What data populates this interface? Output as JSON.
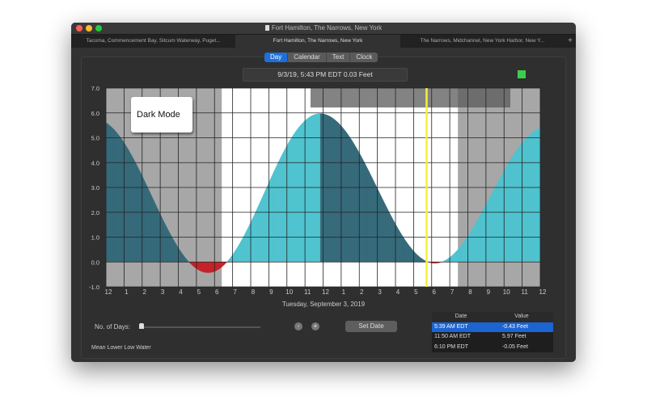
{
  "window": {
    "title": "Fort Hamilton, The Narrows, New York"
  },
  "tabs": [
    {
      "label": "Tacoma, Commencement Bay, Sitcum Waterway, Puget..."
    },
    {
      "label": "Fort Hamilton, The Narrows, New York",
      "active": true
    },
    {
      "label": "The Narrows, Midchannel, New York Harbor, New Y..."
    }
  ],
  "tab_add": "+",
  "view_modes": [
    {
      "label": "Day",
      "selected": true
    },
    {
      "label": "Calendar"
    },
    {
      "label": "Text"
    },
    {
      "label": "Clock"
    }
  ],
  "current_reading": "9/3/19, 5:43 PM EDT 0.03 Feet",
  "status_color": "#3fcc4c",
  "overlay_label": "Dark Mode",
  "chart_data": {
    "type": "area",
    "xlabel": "Tuesday, September 3, 2019",
    "ylim": [
      -1,
      7
    ],
    "y_ticks": [
      "-1.0",
      "0.0",
      "1.0",
      "2.0",
      "3.0",
      "4.0",
      "5.0",
      "6.0",
      "7.0"
    ],
    "x_ticks": [
      "12",
      "1",
      "2",
      "3",
      "4",
      "5",
      "6",
      "7",
      "8",
      "9",
      "10",
      "11",
      "12",
      "1",
      "2",
      "3",
      "4",
      "5",
      "6",
      "7",
      "8",
      "9",
      "10",
      "11",
      "12"
    ],
    "extremes": [
      {
        "time": "5:39 AM",
        "hour": 5.65,
        "value": -0.43
      },
      {
        "time": "11:50 AM",
        "hour": 11.83,
        "value": 5.97
      },
      {
        "time": "6:10 PM",
        "hour": 18.17,
        "value": -0.05
      }
    ],
    "start_value": 5.6,
    "end_value": 5.4,
    "current_time_hour": 17.72,
    "daylight_hours": [
      6.4,
      19.45
    ],
    "colors": {
      "rising": "#4fc3cf",
      "falling": "#356a7a",
      "below_zero": "#c42228",
      "now_line": "#f5f03a",
      "night": "#a7a7a7",
      "day": "#ffffff"
    },
    "grid": true
  },
  "controls": {
    "days_label": "No. of Days:",
    "minus": "-",
    "plus": "+",
    "set_date": "Set Date",
    "datum": "Mean Lower Low Water"
  },
  "table": {
    "headers": [
      "Date",
      "Value"
    ],
    "rows": [
      {
        "date": "5:39 AM EDT",
        "value": "-0.43 Feet",
        "selected": true
      },
      {
        "date": "11:50 AM EDT",
        "value": "5.97 Feet"
      },
      {
        "date": "6:10 PM EDT",
        "value": "-0.05 Feet"
      }
    ]
  }
}
